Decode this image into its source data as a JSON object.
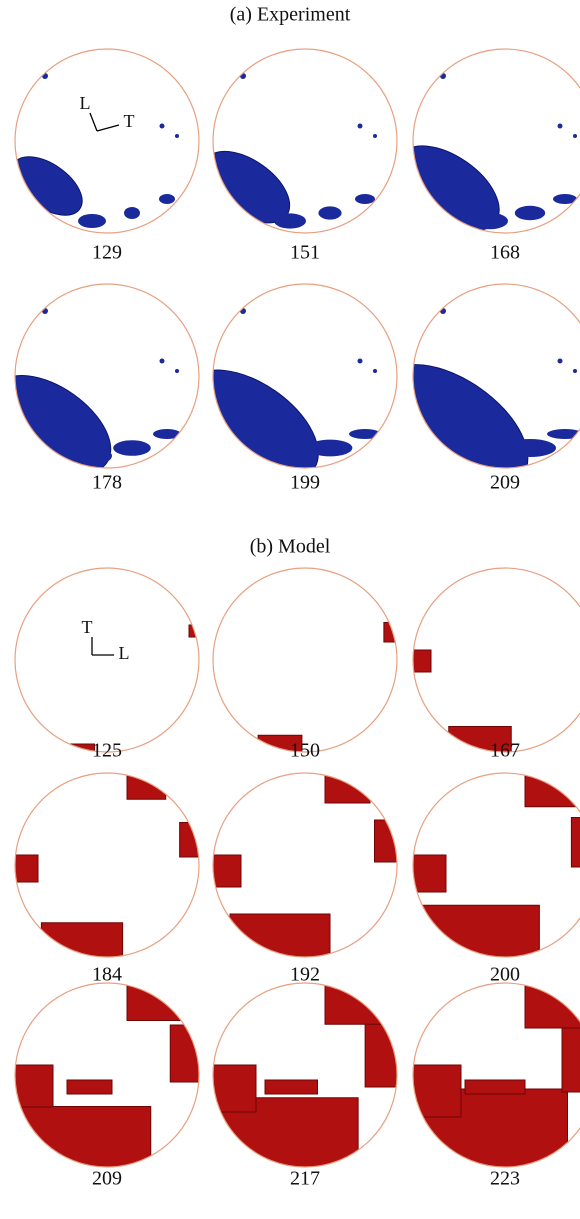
{
  "sections": [
    {
      "title": "(a) Experiment",
      "axes": {
        "vertical": "L",
        "horizontal": "T"
      },
      "panels": [
        129,
        151,
        168,
        178,
        199,
        209
      ]
    },
    {
      "title": "(b) Model",
      "axes": {
        "vertical": "T",
        "horizontal": "L"
      },
      "panels": [
        125,
        150,
        167,
        184,
        192,
        200,
        209,
        217,
        223
      ]
    }
  ]
}
